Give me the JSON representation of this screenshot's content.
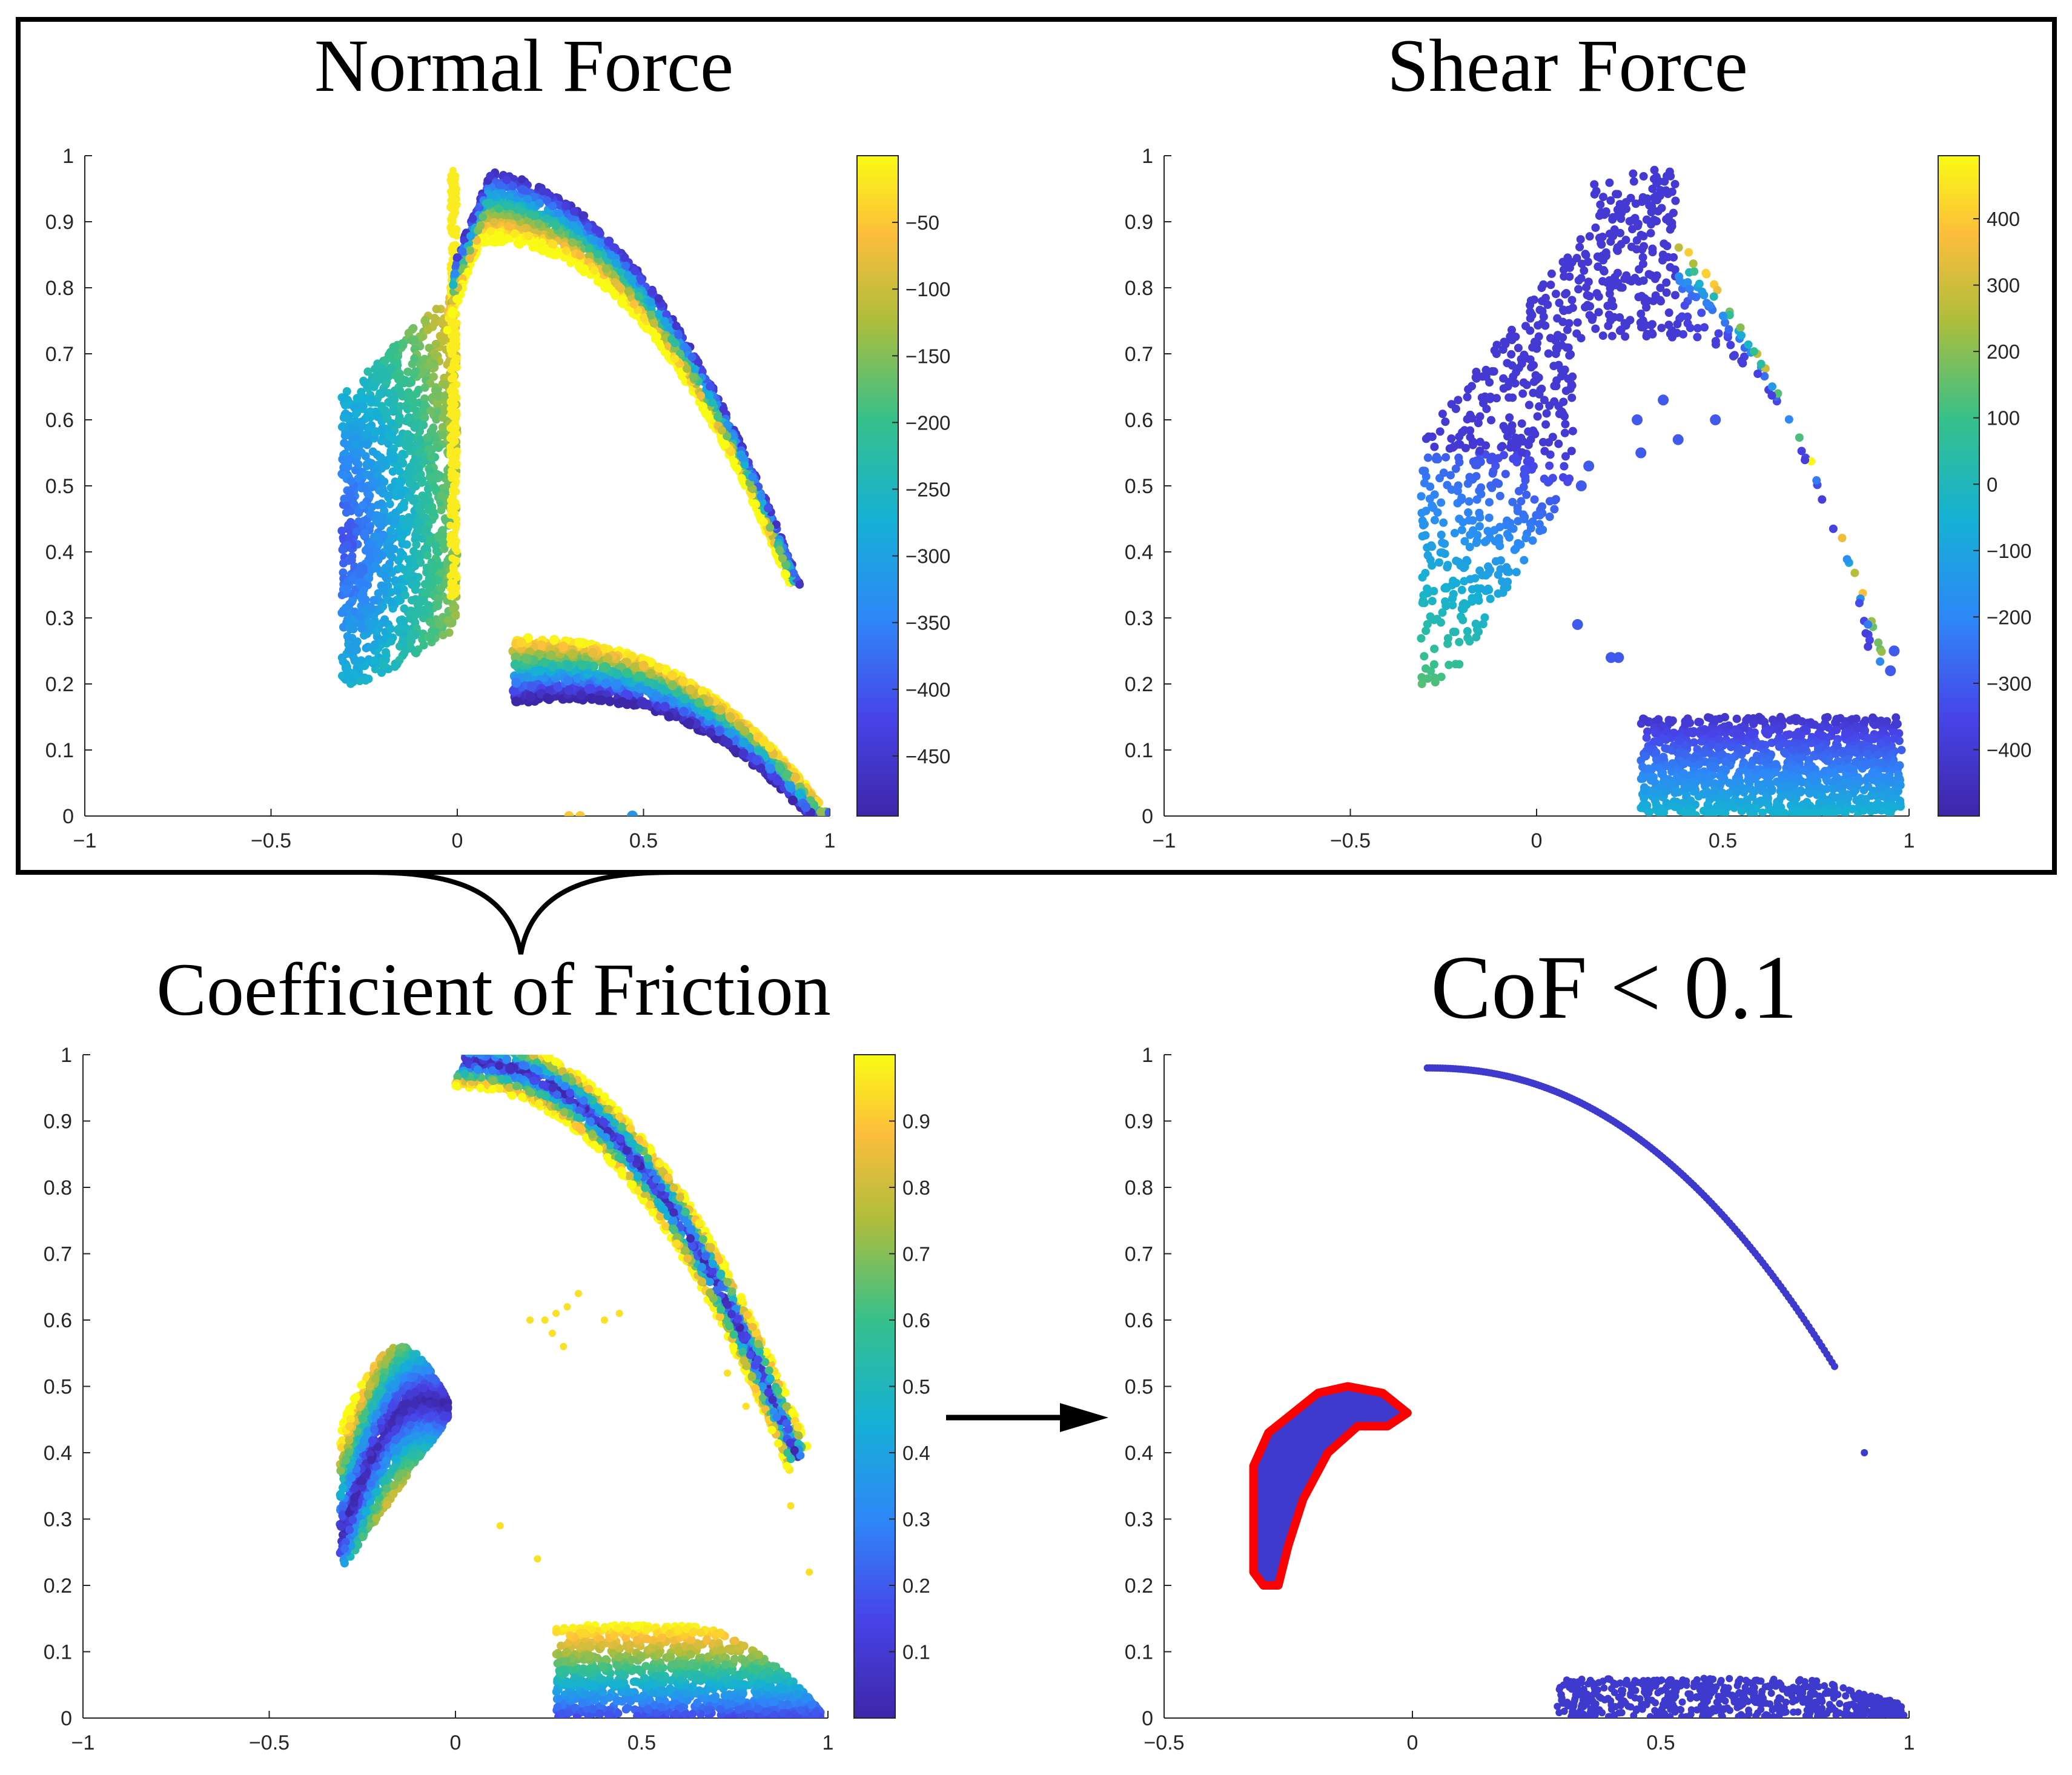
{
  "chart_data": [
    {
      "type": "scatter",
      "title": "Normal Force",
      "xlim": [
        -1,
        1
      ],
      "ylim": [
        0,
        1
      ],
      "xticks": [
        "−1",
        "−0.5",
        "0",
        "0.5",
        "1"
      ],
      "yticks": [
        "0",
        "0.1",
        "0.2",
        "0.3",
        "0.4",
        "0.5",
        "0.6",
        "0.7",
        "0.8",
        "0.9",
        "1"
      ],
      "colorbar": {
        "range": [
          -495,
          0
        ],
        "ticks": [
          "−50",
          "−100",
          "−150",
          "−200",
          "−250",
          "−300",
          "−350",
          "−400",
          "−450"
        ],
        "tick_values": [
          -50,
          -100,
          -150,
          -200,
          -250,
          -300,
          -350,
          -400,
          -450
        ]
      },
      "regions": [
        {
          "name": "left-wedge",
          "x_range": [
            -0.31,
            0.0
          ],
          "y_range": [
            0.2,
            0.98
          ],
          "value_range": [
            -450,
            -30
          ]
        },
        {
          "name": "upper-arc",
          "x_range": [
            0.0,
            0.92
          ],
          "y_range": [
            0.35,
            0.98
          ],
          "value_range": [
            -470,
            -10
          ]
        },
        {
          "name": "lower-arc",
          "x_range": [
            0.15,
            1.0
          ],
          "y_range": [
            0.0,
            0.27
          ],
          "value_range": [
            -480,
            -20
          ]
        }
      ]
    },
    {
      "type": "scatter",
      "title": "Shear Force",
      "xlim": [
        -1,
        1
      ],
      "ylim": [
        0,
        1
      ],
      "xticks": [
        "−1",
        "−0.5",
        "0",
        "0.5",
        "1"
      ],
      "yticks": [
        "0",
        "0.1",
        "0.2",
        "0.3",
        "0.4",
        "0.5",
        "0.6",
        "0.7",
        "0.8",
        "0.9",
        "1"
      ],
      "colorbar": {
        "range": [
          -500,
          495
        ],
        "ticks": [
          "400",
          "300",
          "200",
          "100",
          "0",
          "−100",
          "−200",
          "−300",
          "−400"
        ],
        "tick_values": [
          400,
          300,
          200,
          100,
          0,
          -100,
          -200,
          -300,
          -400
        ]
      },
      "regions": [
        {
          "name": "body",
          "x_range": [
            -0.31,
            0.95
          ],
          "y_range": [
            0.2,
            0.98
          ],
          "value_range": [
            -450,
            480
          ]
        },
        {
          "name": "bottom-block",
          "x_range": [
            0.27,
            0.98
          ],
          "y_range": [
            0.0,
            0.15
          ],
          "value_range": [
            -420,
            -50
          ]
        }
      ]
    },
    {
      "type": "scatter",
      "title": "Coefficient of Friction",
      "xlim": [
        -1,
        1
      ],
      "ylim": [
        0,
        1
      ],
      "xticks": [
        "−1",
        "−0.5",
        "0",
        "0.5",
        "1"
      ],
      "yticks": [
        "0",
        "0.1",
        "0.2",
        "0.3",
        "0.4",
        "0.5",
        "0.6",
        "0.7",
        "0.8",
        "0.9",
        "1"
      ],
      "colorbar": {
        "range": [
          0,
          1
        ],
        "ticks": [
          "0.9",
          "0.8",
          "0.7",
          "0.6",
          "0.5",
          "0.4",
          "0.3",
          "0.2",
          "0.1"
        ],
        "tick_values": [
          0.9,
          0.8,
          0.7,
          0.6,
          0.5,
          0.4,
          0.3,
          0.2,
          0.1
        ]
      },
      "regions": [
        {
          "name": "left-crescent",
          "x_range": [
            -0.31,
            -0.02
          ],
          "y_range": [
            0.2,
            0.56
          ],
          "value_range": [
            0.0,
            0.95
          ]
        },
        {
          "name": "upper-arc",
          "x_range": [
            0.02,
            0.93
          ],
          "y_range": [
            0.38,
            0.99
          ],
          "value_range": [
            0.0,
            0.95
          ]
        },
        {
          "name": "bottom-block",
          "x_range": [
            0.27,
            0.98
          ],
          "y_range": [
            0.0,
            0.14
          ],
          "value_range": [
            0.1,
            0.9
          ]
        }
      ]
    },
    {
      "type": "scatter",
      "title": "CoF < 0.1",
      "xlim": [
        -0.5,
        1
      ],
      "ylim": [
        0,
        1
      ],
      "xticks": [
        "−0.5",
        "0",
        "0.5",
        "1"
      ],
      "yticks": [
        "0",
        "0.1",
        "0.2",
        "0.3",
        "0.4",
        "0.5",
        "0.6",
        "0.7",
        "0.8",
        "0.9",
        "1"
      ],
      "regions": [
        {
          "name": "left-crescent-highlighted",
          "x_range": [
            -0.32,
            -0.02
          ],
          "y_range": [
            0.2,
            0.5
          ],
          "outline_color": "#ff0000"
        },
        {
          "name": "upper-arc-trace",
          "x_range": [
            0.03,
            0.91
          ],
          "y_range": [
            0.4,
            0.98
          ]
        },
        {
          "name": "bottom-strip",
          "x_range": [
            0.29,
            0.99
          ],
          "y_range": [
            0.0,
            0.06
          ]
        }
      ],
      "point_color": "#3e3acd"
    }
  ],
  "colors": {
    "frame": "#000000",
    "highlight_outline": "#ff0000",
    "parula_low": "#3e26a8",
    "parula_high": "#f9fb15"
  }
}
